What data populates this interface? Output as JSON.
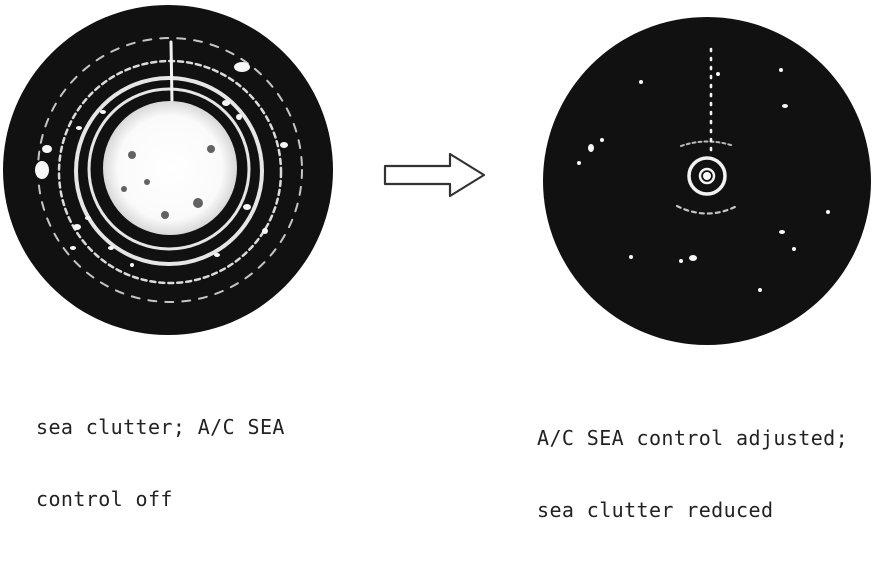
{
  "figure": {
    "left_caption": {
      "line1": "sea clutter; A/C SEA",
      "line2": "control off"
    },
    "right_caption": {
      "line1": "A/C SEA control adjusted;",
      "line2": "sea clutter reduced"
    }
  }
}
